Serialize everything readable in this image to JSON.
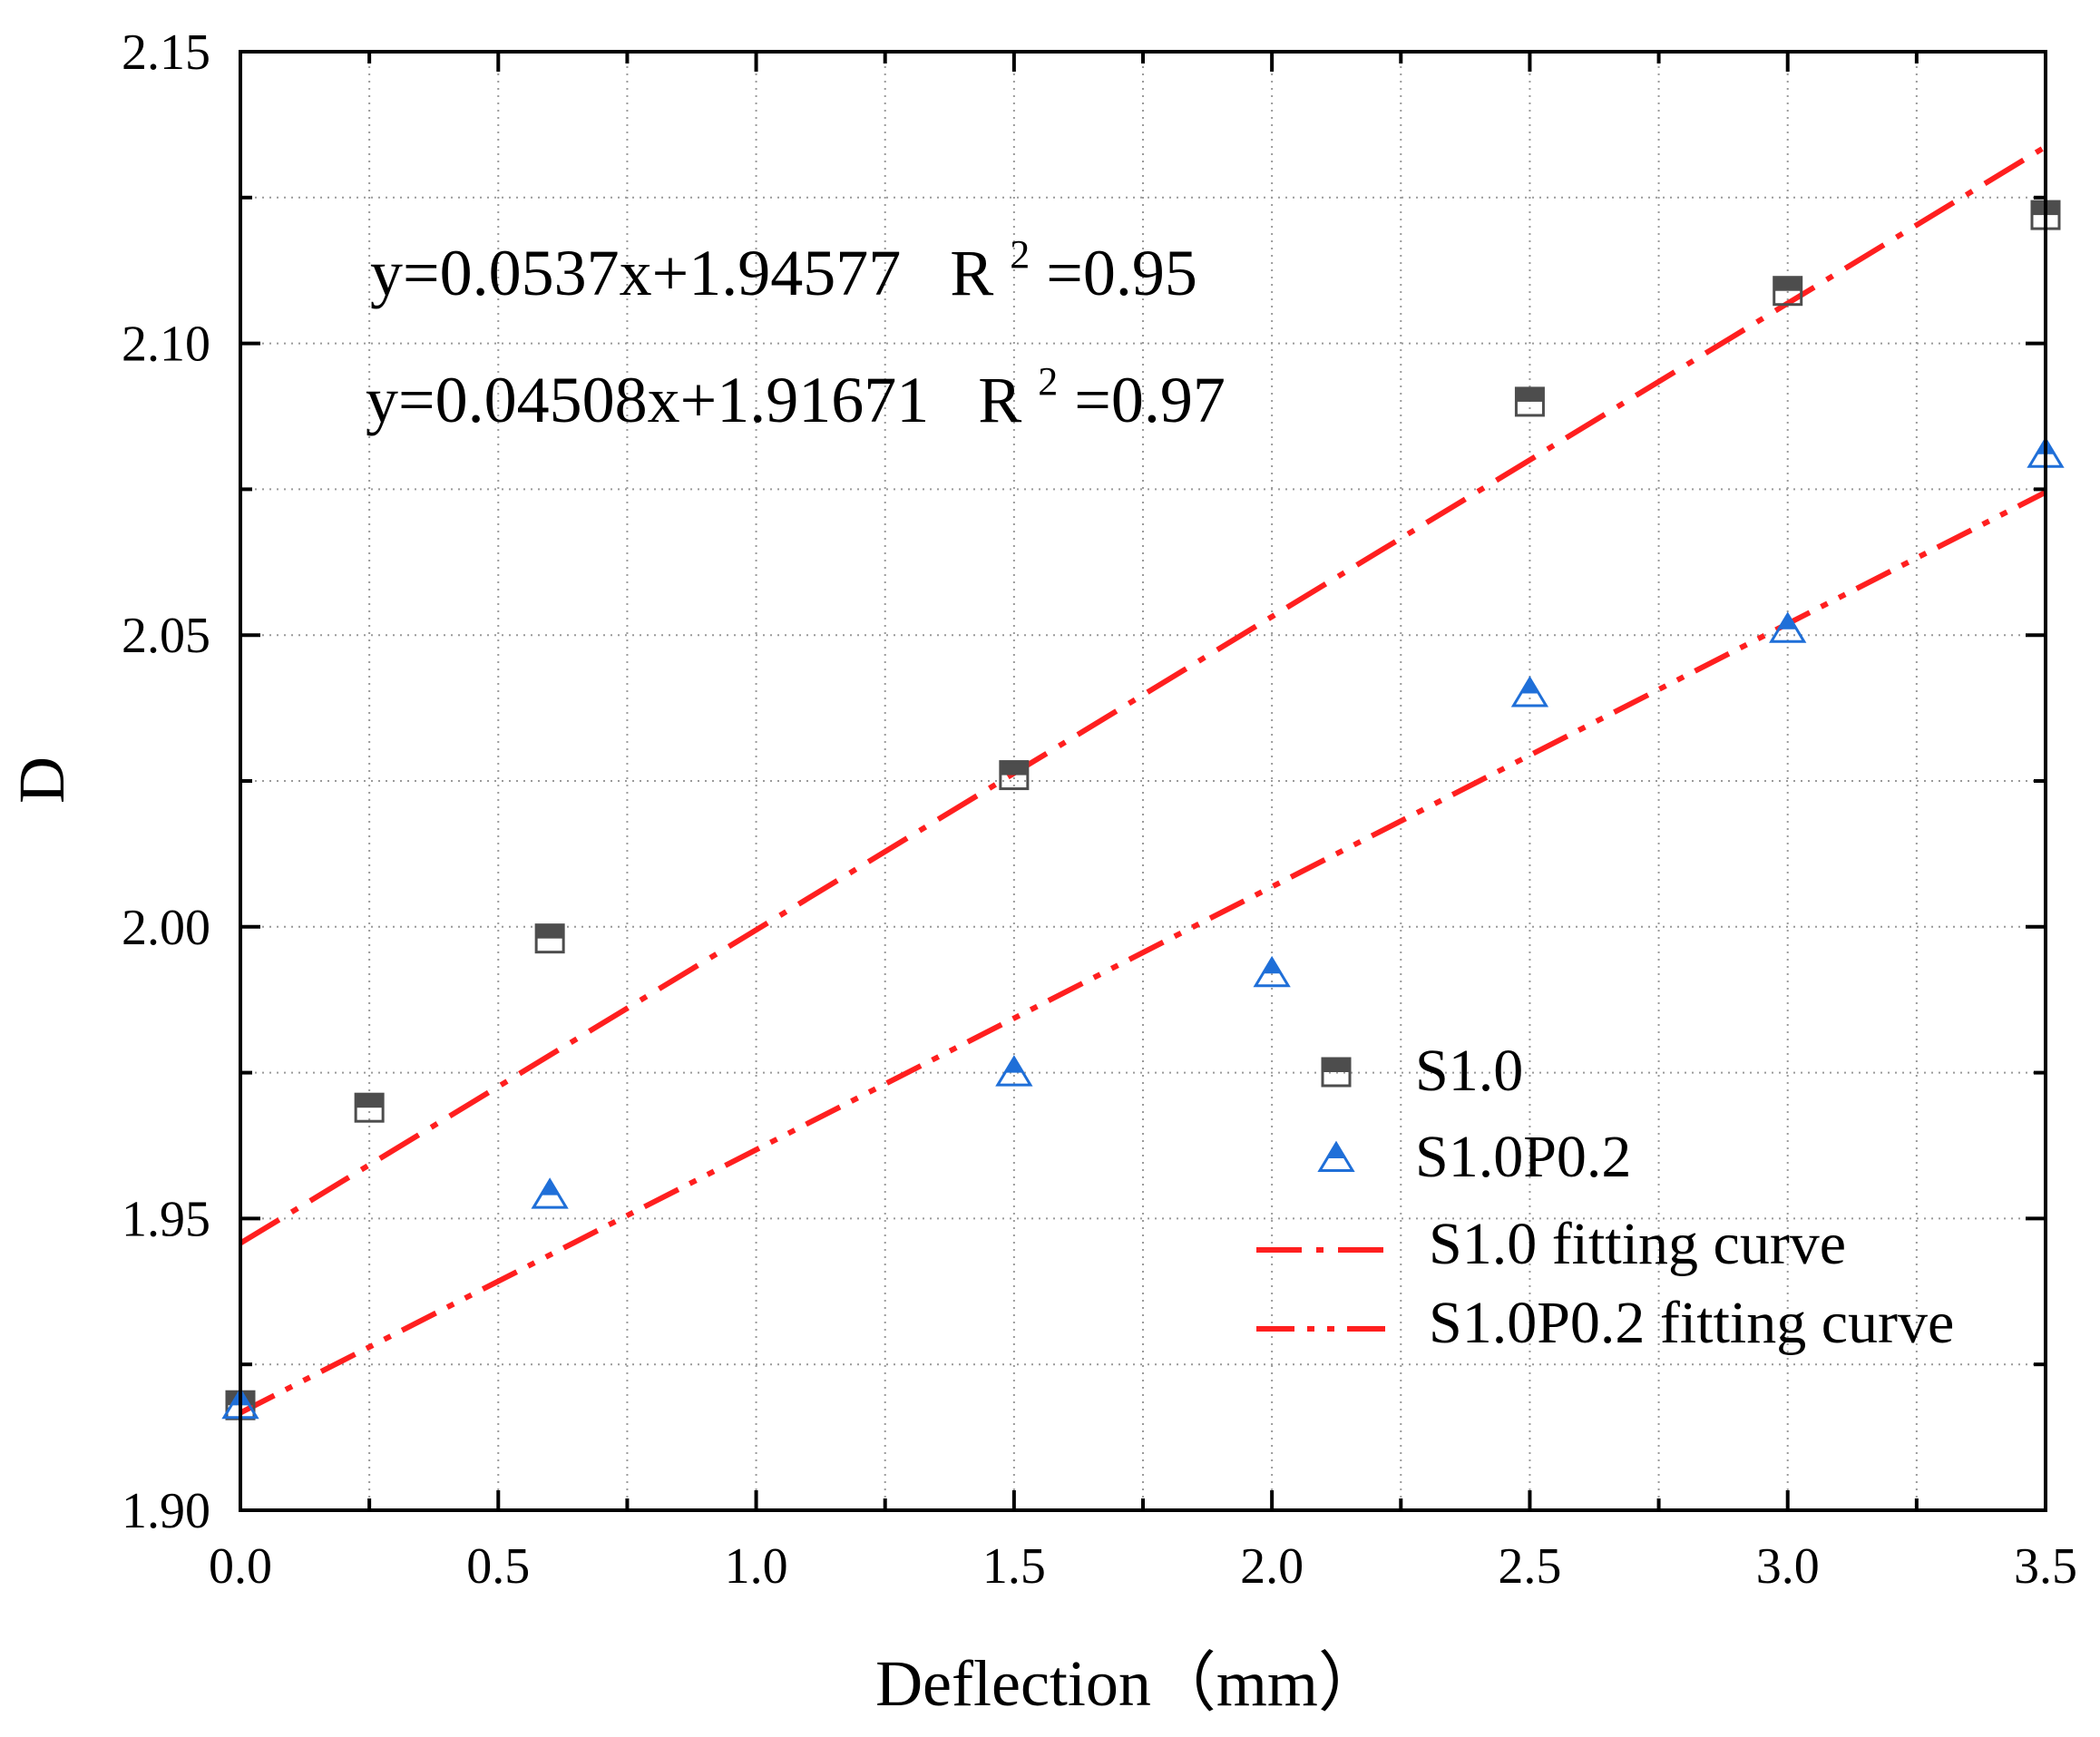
{
  "chart_data": {
    "type": "scatter",
    "xlabel": "Deflection（mm）",
    "ylabel": "D",
    "xlim": [
      0.0,
      3.5
    ],
    "ylim": [
      1.9,
      2.15
    ],
    "grid": true,
    "x_ticks": [
      "0.0",
      "0.5",
      "1.0",
      "1.5",
      "2.0",
      "2.5",
      "3.0",
      "3.5"
    ],
    "y_ticks": [
      "1.90",
      "1.95",
      "2.00",
      "2.05",
      "2.10",
      "2.15"
    ],
    "series": [
      {
        "name": "S1.0",
        "marker": "half-filled-square",
        "color": "#4d4d4d",
        "x": [
          0.0,
          0.25,
          0.6,
          1.5,
          2.5,
          3.0,
          3.5
        ],
        "y": [
          1.918,
          1.969,
          1.998,
          2.026,
          2.09,
          2.109,
          2.122
        ]
      },
      {
        "name": "S1.0P0.2",
        "marker": "half-filled-triangle",
        "color": "#1f6fd8",
        "x": [
          0.0,
          0.6,
          1.5,
          2.0,
          2.5,
          3.0,
          3.5
        ],
        "y": [
          1.918,
          1.954,
          1.975,
          1.992,
          2.04,
          2.051,
          2.081
        ]
      }
    ],
    "fits": [
      {
        "name": "S1.0 fitting curve",
        "slope": 0.0537,
        "intercept": 1.94577,
        "style": "dash-dot",
        "color": "#ff1f1f",
        "equation": "y=0.0537x+1.94577",
        "r2_label": "R",
        "r2_sup": "2",
        "r2_value": "=0.95"
      },
      {
        "name": "S1.0P0.2 fitting curve",
        "slope": 0.04508,
        "intercept": 1.91671,
        "style": "dash-dot-dot",
        "color": "#ff1f1f",
        "equation": "y=0.04508x+1.91671",
        "r2_label": "R",
        "r2_sup": "2",
        "r2_value": "=0.97"
      }
    ],
    "legend_position": "lower-right"
  }
}
